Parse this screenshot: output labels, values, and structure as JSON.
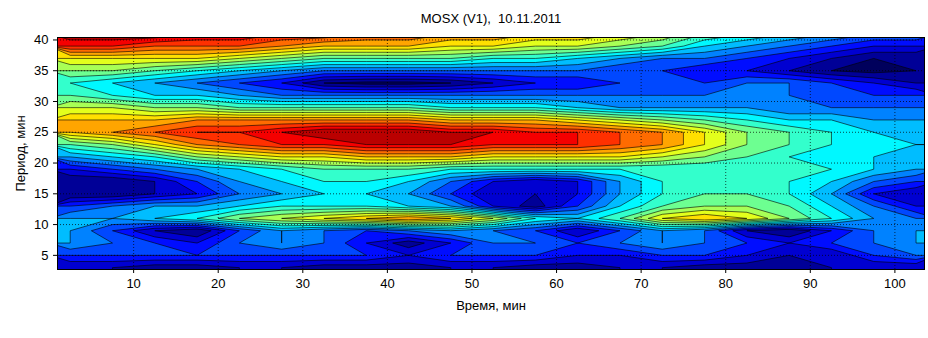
{
  "chart_data": {
    "type": "contour",
    "title": "MOSX (V1),  10.11.2011",
    "x_label": "Время, мин",
    "y_label": "Период, мин",
    "x": [
      2.5,
      7.5,
      12.5,
      17.5,
      22.5,
      27.5,
      32.5,
      37.5,
      42.5,
      47.5,
      52.5,
      57.5,
      62.5,
      67.5,
      72.5,
      77.5,
      82.5,
      87.5,
      92.5,
      97.5,
      102.5
    ],
    "y": [
      3,
      5,
      7,
      9,
      11,
      13,
      15,
      17,
      19,
      21,
      23,
      25,
      27,
      29,
      31,
      33,
      35,
      37,
      39,
      41
    ],
    "values": [
      [
        1.5,
        1.5,
        1.2,
        1.2,
        1.5,
        1.5,
        1.2,
        1.2,
        1.2,
        1.5,
        1.5,
        1.2,
        1.2,
        1.5,
        1.5,
        1.2,
        1.2,
        1.2,
        1.5,
        1.5,
        1.5
      ],
      [
        2.5,
        2.5,
        2.5,
        2.5,
        2.5,
        2.5,
        2.5,
        2.5,
        2,
        2.5,
        2.5,
        2.5,
        2,
        2,
        2.5,
        2.5,
        2,
        1.5,
        1.5,
        2.5,
        3
      ],
      [
        3.5,
        3,
        2.5,
        2,
        3,
        3.5,
        3,
        2,
        1.2,
        2,
        3,
        3,
        2.5,
        3,
        3.5,
        3,
        2.5,
        2,
        2.5,
        3,
        3.5
      ],
      [
        3.5,
        2.5,
        1.5,
        1,
        2.5,
        3.5,
        3,
        2.5,
        3,
        3.5,
        3,
        2.5,
        1.5,
        2.5,
        3.5,
        3,
        1.5,
        1,
        2,
        3,
        3.5
      ],
      [
        3.5,
        3.5,
        4,
        4.5,
        5.5,
        6,
        6.5,
        7,
        7.5,
        7,
        6,
        4.5,
        4,
        5,
        6.5,
        7,
        6.5,
        5.5,
        4.5,
        3.5,
        3
      ],
      [
        2.5,
        3,
        3.5,
        3.5,
        4,
        4.5,
        4.5,
        4.5,
        4,
        3.5,
        2,
        1.2,
        2.5,
        4,
        5,
        5.5,
        5.5,
        5,
        4,
        3,
        2
      ],
      [
        1,
        1,
        1.5,
        2,
        3,
        3.5,
        4,
        4,
        3.5,
        2.5,
        1.5,
        1.5,
        2,
        3.5,
        4.5,
        5,
        5,
        4.5,
        3.5,
        2,
        1.5
      ],
      [
        1,
        1,
        1.5,
        2.5,
        3.5,
        4,
        4.5,
        4.5,
        4,
        3,
        2,
        1.5,
        2,
        3.5,
        4.5,
        4.5,
        4.5,
        4.5,
        4,
        3,
        2.5
      ],
      [
        2,
        2.5,
        3,
        3.5,
        4,
        4.5,
        5,
        5,
        5,
        4.5,
        4.5,
        4.5,
        4.5,
        4.5,
        4.5,
        4.5,
        4.5,
        4.5,
        4.5,
        4,
        3.5
      ],
      [
        3.5,
        4,
        4.5,
        5.5,
        6,
        6.5,
        6.5,
        7,
        7,
        7,
        6.5,
        6.5,
        6.5,
        6.5,
        6,
        5.5,
        5,
        4.5,
        4,
        4,
        3.5
      ],
      [
        5,
        5.5,
        6.5,
        7.5,
        8,
        8.5,
        8.5,
        9,
        9,
        9,
        8.5,
        8.5,
        8.5,
        8,
        7.5,
        6.5,
        5.5,
        5,
        4.5,
        4,
        4
      ],
      [
        7,
        7.5,
        8,
        8.5,
        8.5,
        9,
        9.5,
        9.5,
        9.5,
        9,
        9,
        8.5,
        8.5,
        8,
        7.5,
        6.5,
        5.5,
        5,
        4.5,
        4,
        3.5
      ],
      [
        7,
        7,
        7,
        7.5,
        7.5,
        7.5,
        7.5,
        7.5,
        7.5,
        7,
        7,
        7,
        6.5,
        6,
        5.5,
        5,
        4.5,
        4,
        4,
        3.5,
        3.5
      ],
      [
        6,
        6,
        5.5,
        5.5,
        5,
        5,
        5,
        5,
        5,
        4.5,
        4.5,
        4.5,
        4,
        3.5,
        3.5,
        3.5,
        3.5,
        3,
        3,
        3,
        3
      ],
      [
        5,
        4.5,
        4,
        4,
        3.5,
        3,
        3,
        3,
        3,
        3,
        3,
        3,
        3,
        3,
        3,
        3,
        3,
        3,
        2.5,
        2.5,
        2.5
      ],
      [
        4.5,
        4,
        3.5,
        3,
        2.5,
        2,
        1,
        0.8,
        0.8,
        1,
        1.5,
        2,
        2,
        2.5,
        2.5,
        2.5,
        3,
        3,
        2.5,
        2,
        1.5
      ],
      [
        5.5,
        5.5,
        5,
        4.5,
        4,
        3.5,
        3,
        3,
        3,
        3,
        3,
        3,
        3,
        2.5,
        2.5,
        2,
        2,
        1.5,
        1,
        0.8,
        1
      ],
      [
        6.5,
        6.5,
        6.5,
        6.5,
        6,
        5.5,
        5,
        5,
        5,
        5,
        4.5,
        4.5,
        4,
        3.5,
        3,
        3,
        2.5,
        2,
        1.5,
        1,
        1
      ],
      [
        8.5,
        8.5,
        8,
        8,
        8,
        7.5,
        7,
        7,
        7,
        6.5,
        6.5,
        6,
        6,
        5.5,
        5,
        4,
        3.5,
        3,
        2.5,
        2,
        2
      ],
      [
        9.5,
        9.5,
        9.5,
        9,
        9,
        8.5,
        8.5,
        8,
        8,
        7.5,
        7.5,
        7,
        7,
        6.5,
        6,
        5,
        4.5,
        4,
        3.5,
        3,
        3
      ]
    ],
    "xlim": [
      1,
      103.5
    ],
    "ylim": [
      2.7,
      40.4
    ],
    "xticks": [
      10,
      20,
      30,
      40,
      50,
      60,
      70,
      80,
      90,
      100
    ],
    "yticks": [
      5,
      10,
      15,
      20,
      25,
      30,
      35,
      40
    ],
    "grid": true,
    "color": "jet"
  }
}
